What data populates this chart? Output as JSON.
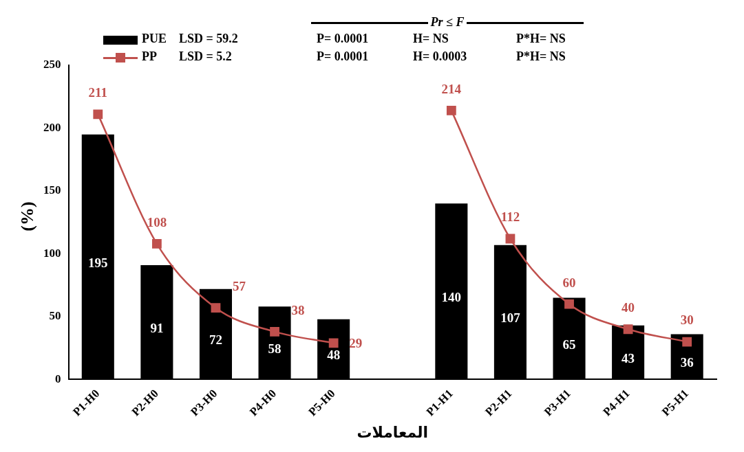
{
  "chart_data": {
    "type": "bar",
    "xlabel": "المعاملات",
    "ylabel": "(%)",
    "categories": [
      "P1-H0",
      "P2-H0",
      "P3-H0",
      "P4-H0",
      "P5-H0",
      null,
      "P1-H1",
      "P2-H1",
      "P3-H1",
      "P4-H1",
      "P5-H1"
    ],
    "series": [
      {
        "name": "PUE",
        "color": "#000000",
        "values": [
          195,
          91,
          72,
          58,
          48,
          null,
          140,
          107,
          65,
          43,
          36
        ]
      },
      {
        "name": "PP",
        "type": "line",
        "color": "#c0504d",
        "values": [
          211,
          108,
          57,
          38,
          29,
          null,
          214,
          112,
          60,
          40,
          30
        ]
      }
    ],
    "ylim": [
      0,
      250
    ],
    "yticks": [
      0,
      50,
      100,
      150,
      200,
      250
    ],
    "grid": false,
    "legend": "top left",
    "marker": "square",
    "line_style": "solid",
    "data_labels": true,
    "annotations": [
      "Pr ≤ F",
      "LSD = 59.2",
      "P= 0.0001",
      "H= NS",
      "P*H= NS",
      "LSD = 5.2",
      "P= 0.0001",
      "H= 0.0003",
      "P*H= NS"
    ]
  }
}
